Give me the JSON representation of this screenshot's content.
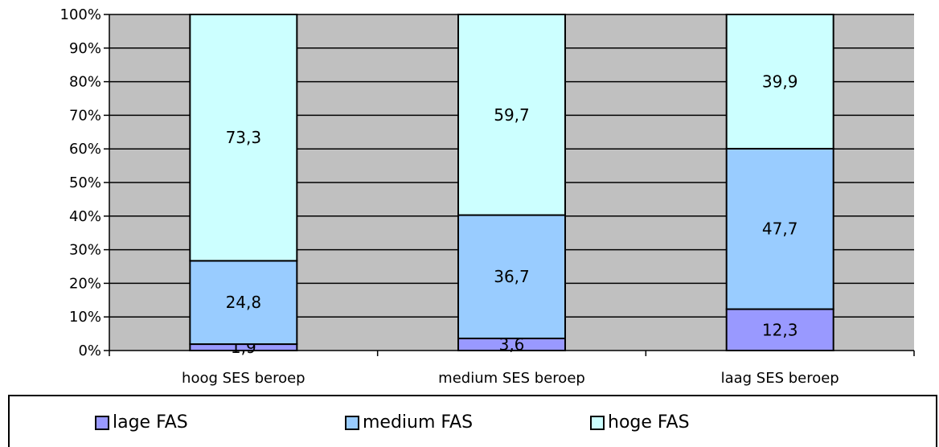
{
  "chart_data": {
    "type": "bar",
    "stacked": true,
    "percent": true,
    "categories": [
      "hoog SES beroep",
      "medium SES beroep",
      "laag SES beroep"
    ],
    "series": [
      {
        "name": "lage FAS",
        "values": [
          1.9,
          3.6,
          12.3
        ],
        "labels": [
          "1,9",
          "3,6",
          "12,3"
        ],
        "color": "#9999ff"
      },
      {
        "name": "medium FAS",
        "values": [
          24.8,
          36.7,
          47.7
        ],
        "labels": [
          "24,8",
          "36,7",
          "47,7"
        ],
        "color": "#99ccff"
      },
      {
        "name": "hoge FAS",
        "values": [
          73.3,
          59.7,
          39.9
        ],
        "labels": [
          "73,3",
          "59,7",
          "39,9"
        ],
        "color": "#ccffff"
      }
    ],
    "yticks": [
      "0%",
      "10%",
      "20%",
      "30%",
      "40%",
      "50%",
      "60%",
      "70%",
      "80%",
      "90%",
      "100%"
    ],
    "ylim": [
      0,
      100
    ],
    "plot_background": "#c0c0c0",
    "grid": true,
    "legend_position": "bottom"
  }
}
